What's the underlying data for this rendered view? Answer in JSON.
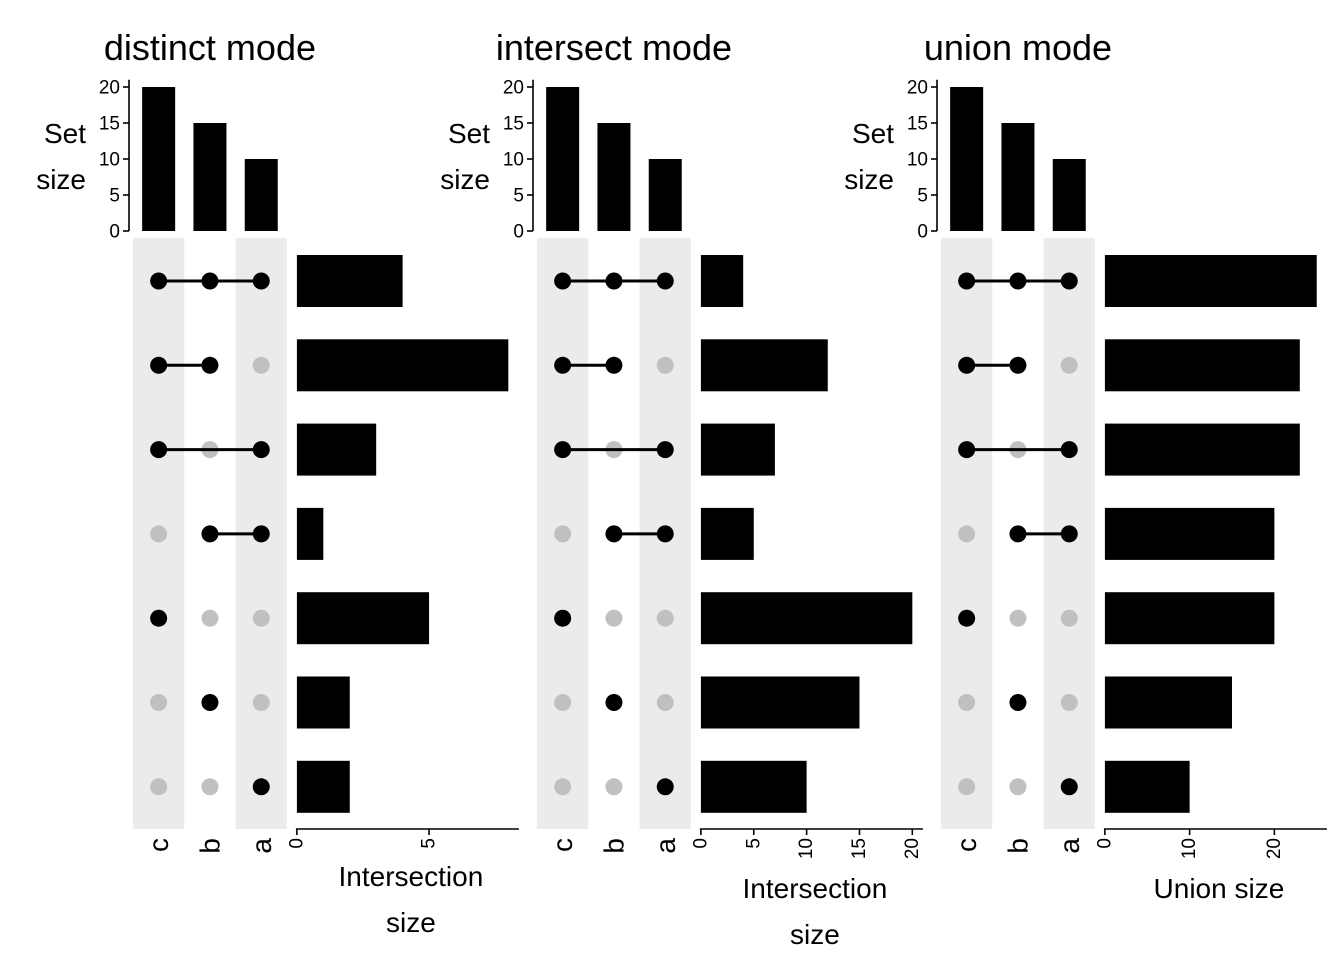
{
  "colors": {
    "bar": "#000000",
    "dot_on": "#000000",
    "dot_off": "#c0c0c0",
    "stripe": "#ebebeb",
    "axis": "#000000",
    "background": "#ffffff"
  },
  "chart_data": [
    {
      "type": "bar",
      "title": "distinct mode",
      "set_size_label": [
        "Set",
        "size"
      ],
      "sets": [
        "c",
        "b",
        "a"
      ],
      "set_sizes": [
        20,
        15,
        10
      ],
      "set_size_ylim": [
        0,
        21
      ],
      "set_size_ticks": [
        0,
        5,
        10,
        15,
        20
      ],
      "combinations": [
        [
          "c",
          "b",
          "a"
        ],
        [
          "c",
          "b"
        ],
        [
          "c",
          "a"
        ],
        [
          "b",
          "a"
        ],
        [
          "c"
        ],
        [
          "b"
        ],
        [
          "a"
        ]
      ],
      "xlabel": [
        "Intersection",
        "size"
      ],
      "values": [
        4,
        8,
        3,
        1,
        5,
        2,
        2
      ],
      "xlim": [
        0,
        8.4
      ],
      "xticks": [
        0,
        5
      ]
    },
    {
      "type": "bar",
      "title": "intersect mode",
      "set_size_label": [
        "Set",
        "size"
      ],
      "sets": [
        "c",
        "b",
        "a"
      ],
      "set_sizes": [
        20,
        15,
        10
      ],
      "set_size_ylim": [
        0,
        21
      ],
      "set_size_ticks": [
        0,
        5,
        10,
        15,
        20
      ],
      "combinations": [
        [
          "c",
          "b",
          "a"
        ],
        [
          "c",
          "b"
        ],
        [
          "c",
          "a"
        ],
        [
          "b",
          "a"
        ],
        [
          "c"
        ],
        [
          "b"
        ],
        [
          "a"
        ]
      ],
      "xlabel": [
        "Intersection",
        "size"
      ],
      "values": [
        4,
        12,
        7,
        5,
        20,
        15,
        10
      ],
      "xlim": [
        0,
        21
      ],
      "xticks": [
        0,
        5,
        10,
        15,
        20
      ]
    },
    {
      "type": "bar",
      "title": "union mode",
      "set_size_label": [
        "Set",
        "size"
      ],
      "sets": [
        "c",
        "b",
        "a"
      ],
      "set_sizes": [
        20,
        15,
        10
      ],
      "set_size_ylim": [
        0,
        21
      ],
      "set_size_ticks": [
        0,
        5,
        10,
        15,
        20
      ],
      "combinations": [
        [
          "c",
          "b",
          "a"
        ],
        [
          "c",
          "b"
        ],
        [
          "c",
          "a"
        ],
        [
          "b",
          "a"
        ],
        [
          "c"
        ],
        [
          "b"
        ],
        [
          "a"
        ]
      ],
      "xlabel": [
        "Union size"
      ],
      "values": [
        25,
        23,
        23,
        20,
        20,
        15,
        10
      ],
      "xlim": [
        0,
        26.2
      ],
      "xticks": [
        0,
        10,
        20
      ]
    }
  ]
}
